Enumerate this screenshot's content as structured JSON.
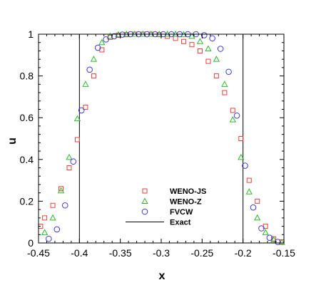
{
  "chart_data": {
    "type": "scatter",
    "xlabel": "x",
    "ylabel": "u",
    "xlim": [
      -0.45,
      -0.15
    ],
    "ylim": [
      0,
      1
    ],
    "xticks": [
      "-0.45",
      "-0.4",
      "-0.35",
      "-0.3",
      "-0.25",
      "-0.2",
      "-0.15"
    ],
    "yticks": [
      "0",
      "0.2",
      "0.4",
      "0.6",
      "0.8",
      "1"
    ],
    "grid": false,
    "legend_position": "bottom-center",
    "series": [
      {
        "name": "WENO-JS",
        "marker": "square",
        "color": "#e8413c",
        "x": [
          -0.4475,
          -0.4425,
          -0.4325,
          -0.4225,
          -0.4125,
          -0.4025,
          -0.3925,
          -0.3825,
          -0.3725,
          -0.3625,
          -0.3525,
          -0.3425,
          -0.3325,
          -0.3225,
          -0.3125,
          -0.3025,
          -0.2925,
          -0.2825,
          -0.2725,
          -0.2625,
          -0.2525,
          -0.2425,
          -0.2325,
          -0.2225,
          -0.2125,
          -0.2025,
          -0.1925,
          -0.1825,
          -0.1725,
          -0.1625,
          -0.1525
        ],
        "y": [
          0.08,
          0.12,
          0.18,
          0.26,
          0.36,
          0.495,
          0.65,
          0.8,
          0.925,
          0.985,
          0.995,
          0.998,
          1.0,
          1.0,
          1.0,
          0.998,
          0.99,
          0.98,
          0.965,
          0.95,
          0.92,
          0.87,
          0.8,
          0.72,
          0.635,
          0.5,
          0.3,
          0.2,
          0.08,
          0.02,
          0.005
        ]
      },
      {
        "name": "WENO-Z",
        "marker": "triangle",
        "color": "#2db82d",
        "x": [
          -0.4425,
          -0.4325,
          -0.4225,
          -0.4125,
          -0.4025,
          -0.3925,
          -0.3825,
          -0.3725,
          -0.3625,
          -0.3525,
          -0.3425,
          -0.3325,
          -0.3225,
          -0.3125,
          -0.3025,
          -0.2925,
          -0.2825,
          -0.2725,
          -0.2625,
          -0.2525,
          -0.2425,
          -0.2325,
          -0.2225,
          -0.2125,
          -0.2025,
          -0.1925,
          -0.1825,
          -0.1725,
          -0.1625,
          -0.1525
        ],
        "y": [
          0.05,
          0.12,
          0.25,
          0.41,
          0.595,
          0.76,
          0.88,
          0.96,
          0.99,
          0.998,
          1.0,
          1.0,
          1.0,
          1.0,
          1.0,
          1.0,
          1.0,
          0.998,
          0.99,
          0.965,
          0.93,
          0.88,
          0.76,
          0.59,
          0.41,
          0.245,
          0.12,
          0.05,
          0.015,
          0.003
        ]
      },
      {
        "name": "FVCW",
        "marker": "circle",
        "color": "#3a3ad6",
        "x": [
          -0.4375,
          -0.4275,
          -0.4175,
          -0.4075,
          -0.3975,
          -0.3875,
          -0.3775,
          -0.3675,
          -0.3575,
          -0.3475,
          -0.3375,
          -0.3275,
          -0.3175,
          -0.3075,
          -0.2975,
          -0.2875,
          -0.2775,
          -0.2675,
          -0.2575,
          -0.2475,
          -0.2375,
          -0.2275,
          -0.2175,
          -0.2075,
          -0.1975,
          -0.1875,
          -0.1775,
          -0.1675,
          -0.1575
        ],
        "y": [
          0.02,
          0.065,
          0.18,
          0.39,
          0.635,
          0.83,
          0.935,
          0.975,
          0.99,
          0.998,
          1.0,
          1.0,
          1.0,
          1.0,
          1.0,
          1.0,
          1.0,
          1.0,
          1.0,
          0.995,
          0.98,
          0.93,
          0.82,
          0.61,
          0.37,
          0.17,
          0.07,
          0.025,
          0.005
        ]
      }
    ],
    "exact": {
      "name": "Exact",
      "color": "#000000",
      "x": [
        -0.45,
        -0.4,
        -0.4,
        -0.2,
        -0.2,
        -0.15
      ],
      "y": [
        0,
        0,
        1,
        1,
        0,
        0
      ]
    }
  }
}
